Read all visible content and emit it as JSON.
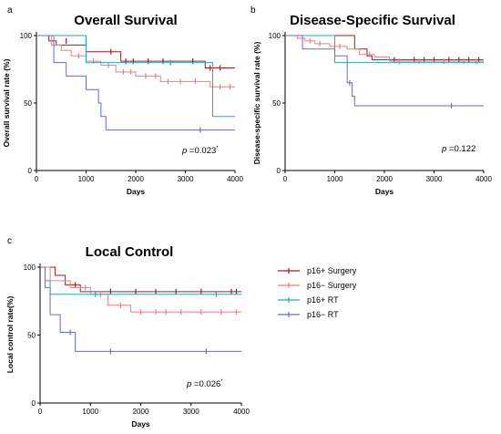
{
  "legend": {
    "entries": [
      {
        "name": "p16+ Surgery",
        "color": "#a31a1a"
      },
      {
        "name": "p16− Surgery",
        "color": "#f07f7f"
      },
      {
        "name": "p16+ RT",
        "color": "#29a6b8"
      },
      {
        "name": "p16− RT",
        "color": "#6a6ad8"
      }
    ]
  },
  "chart_data": [
    {
      "type": "line",
      "panel_label": "a",
      "title": "Overall Survival",
      "xlabel": "Days",
      "ylabel": "Overall survival rate (%)",
      "xlim": [
        0,
        4000
      ],
      "ylim": [
        0,
        100
      ],
      "xticks": [
        0,
        1000,
        2000,
        3000,
        4000
      ],
      "yticks": [
        0,
        50,
        100
      ],
      "annotation": {
        "prefix": "p",
        "text": " =0.023",
        "superscript": "*"
      },
      "series": [
        {
          "name": "p16+ Surgery",
          "color": "#a31a1a",
          "steps": [
            [
              0,
              100
            ],
            [
              250,
              96
            ],
            [
              400,
              93
            ],
            [
              1000,
              88
            ],
            [
              1700,
              81
            ],
            [
              3400,
              76
            ],
            [
              4000,
              76
            ]
          ],
          "censors": [
            [
              600,
              96
            ],
            [
              1500,
              88
            ],
            [
              1800,
              81
            ],
            [
              1950,
              81
            ],
            [
              2250,
              81
            ],
            [
              2550,
              81
            ],
            [
              3150,
              81
            ],
            [
              3500,
              76
            ],
            [
              3700,
              76
            ]
          ]
        },
        {
          "name": "p16− Surgery",
          "color": "#f07f7f",
          "steps": [
            [
              0,
              100
            ],
            [
              300,
              93
            ],
            [
              500,
              89
            ],
            [
              700,
              85
            ],
            [
              1000,
              81
            ],
            [
              1300,
              78
            ],
            [
              1600,
              73
            ],
            [
              2000,
              70
            ],
            [
              2500,
              66
            ],
            [
              3500,
              62
            ],
            [
              4000,
              62
            ]
          ],
          "censors": [
            [
              850,
              85
            ],
            [
              1150,
              81
            ],
            [
              1450,
              78
            ],
            [
              1750,
              73
            ],
            [
              1900,
              73
            ],
            [
              2200,
              70
            ],
            [
              2400,
              70
            ],
            [
              2650,
              66
            ],
            [
              2900,
              66
            ],
            [
              3200,
              66
            ],
            [
              3700,
              62
            ],
            [
              3900,
              62
            ]
          ]
        },
        {
          "name": "p16+ RT",
          "color": "#29a6b8",
          "steps": [
            [
              0,
              100
            ],
            [
              1000,
              80
            ],
            [
              3550,
              40
            ],
            [
              4000,
              40
            ]
          ],
          "censors": [
            [
              2700,
              80
            ]
          ]
        },
        {
          "name": "p16− RT",
          "color": "#6a6ad8",
          "steps": [
            [
              0,
              100
            ],
            [
              350,
              80
            ],
            [
              600,
              70
            ],
            [
              1000,
              60
            ],
            [
              1250,
              50
            ],
            [
              1300,
              40
            ],
            [
              1400,
              30
            ],
            [
              4000,
              30
            ]
          ],
          "censors": [
            [
              3300,
              30
            ]
          ]
        }
      ]
    },
    {
      "type": "line",
      "panel_label": "b",
      "title": "Disease-Specific Survival",
      "xlabel": "Days",
      "ylabel": "Disease-specific survival rate (%)",
      "xlim": [
        0,
        4000
      ],
      "ylim": [
        0,
        100
      ],
      "xticks": [
        0,
        1000,
        2000,
        3000,
        4000
      ],
      "yticks": [
        0,
        50,
        100
      ],
      "annotation": {
        "prefix": "p",
        "text": " =0.122",
        "superscript": ""
      },
      "series": [
        {
          "name": "p16+ Surgery",
          "color": "#a31a1a",
          "steps": [
            [
              0,
              100
            ],
            [
              1400,
              90
            ],
            [
              1650,
              85
            ],
            [
              1750,
              82
            ],
            [
              4000,
              82
            ]
          ],
          "censors": [
            [
              2200,
              82
            ],
            [
              2600,
              82
            ],
            [
              2800,
              82
            ],
            [
              3000,
              82
            ],
            [
              3300,
              82
            ],
            [
              3500,
              82
            ],
            [
              3700,
              82
            ],
            [
              3900,
              82
            ]
          ]
        },
        {
          "name": "p16− Surgery",
          "color": "#f07f7f",
          "steps": [
            [
              0,
              100
            ],
            [
              250,
              98
            ],
            [
              400,
              96
            ],
            [
              600,
              94
            ],
            [
              900,
              92
            ],
            [
              1250,
              90
            ],
            [
              1500,
              86
            ],
            [
              1800,
              84
            ],
            [
              2100,
              81
            ],
            [
              4000,
              81
            ]
          ],
          "censors": [
            [
              500,
              96
            ],
            [
              700,
              94
            ],
            [
              1100,
              92
            ],
            [
              1700,
              86
            ],
            [
              2300,
              81
            ],
            [
              2700,
              81
            ],
            [
              3200,
              81
            ],
            [
              3600,
              81
            ],
            [
              3850,
              81
            ]
          ]
        },
        {
          "name": "p16+ RT",
          "color": "#29a6b8",
          "steps": [
            [
              0,
              100
            ],
            [
              1000,
              80
            ],
            [
              4000,
              80
            ]
          ],
          "censors": []
        },
        {
          "name": "p16− RT",
          "color": "#6a6ad8",
          "steps": [
            [
              0,
              100
            ],
            [
              350,
              90
            ],
            [
              1000,
              85
            ],
            [
              1250,
              65
            ],
            [
              1350,
              55
            ],
            [
              1400,
              48
            ],
            [
              4000,
              48
            ]
          ],
          "censors": [
            [
              1300,
              65
            ],
            [
              3350,
              48
            ]
          ]
        }
      ]
    },
    {
      "type": "line",
      "panel_label": "c",
      "title": "Local Control",
      "xlabel": "Days",
      "ylabel": "Local control rate(%)",
      "xlim": [
        0,
        4000
      ],
      "ylim": [
        0,
        100
      ],
      "xticks": [
        0,
        1000,
        2000,
        3000,
        4000
      ],
      "yticks": [
        0,
        50,
        100
      ],
      "annotation": {
        "prefix": "p",
        "text": " =0.026",
        "superscript": "*"
      },
      "series": [
        {
          "name": "p16+ Surgery",
          "color": "#a31a1a",
          "steps": [
            [
              0,
              100
            ],
            [
              300,
              94
            ],
            [
              500,
              87
            ],
            [
              800,
              82
            ],
            [
              4000,
              82
            ]
          ],
          "censors": [
            [
              700,
              87
            ],
            [
              1400,
              82
            ],
            [
              1900,
              82
            ],
            [
              2300,
              82
            ],
            [
              2700,
              82
            ],
            [
              3200,
              82
            ],
            [
              3800,
              82
            ],
            [
              3900,
              82
            ]
          ]
        },
        {
          "name": "p16− Surgery",
          "color": "#f07f7f",
          "steps": [
            [
              0,
              100
            ],
            [
              200,
              90
            ],
            [
              600,
              85
            ],
            [
              1000,
              80
            ],
            [
              1350,
              72
            ],
            [
              1800,
              67
            ],
            [
              4000,
              67
            ]
          ],
          "censors": [
            [
              900,
              85
            ],
            [
              1200,
              80
            ],
            [
              1600,
              72
            ],
            [
              2000,
              67
            ],
            [
              2300,
              67
            ],
            [
              2500,
              67
            ],
            [
              2800,
              67
            ],
            [
              3200,
              67
            ],
            [
              3600,
              67
            ],
            [
              3900,
              67
            ]
          ]
        },
        {
          "name": "p16+ RT",
          "color": "#29a6b8",
          "steps": [
            [
              0,
              100
            ],
            [
              100,
              90
            ],
            [
              200,
              80
            ],
            [
              4000,
              80
            ]
          ],
          "censors": [
            [
              1100,
              80
            ],
            [
              3500,
              80
            ]
          ]
        },
        {
          "name": "p16− RT",
          "color": "#6a6ad8",
          "steps": [
            [
              0,
              100
            ],
            [
              100,
              85
            ],
            [
              200,
              65
            ],
            [
              400,
              52
            ],
            [
              700,
              38
            ],
            [
              4000,
              38
            ]
          ],
          "censors": [
            [
              600,
              52
            ],
            [
              1400,
              38
            ],
            [
              3300,
              38
            ]
          ]
        }
      ]
    }
  ]
}
